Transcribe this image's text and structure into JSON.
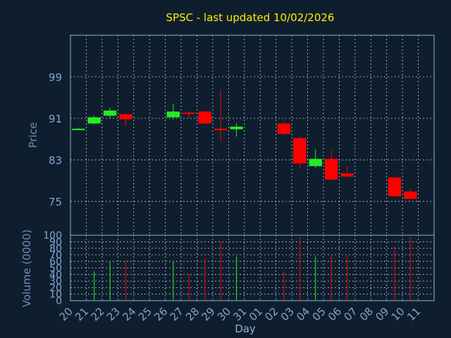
{
  "chart_data": {
    "type": "candlestick",
    "title": "SPSC - last updated 10/02/2026",
    "xlabel": "Day",
    "price_panel": {
      "ylabel": "Price",
      "yticks": [
        75,
        83,
        91,
        99
      ],
      "ylim": [
        68.5,
        107
      ]
    },
    "volume_panel": {
      "ylabel": "Volume (0000)",
      "yticks": [
        0,
        10,
        20,
        30,
        40,
        50,
        60,
        70,
        80,
        90,
        100
      ],
      "ylim": [
        0,
        100
      ]
    },
    "days": [
      "20",
      "21",
      "22",
      "23",
      "24",
      "25",
      "26",
      "27",
      "28",
      "29",
      "30",
      "31",
      "01",
      "02",
      "03",
      "04",
      "05",
      "06",
      "07",
      "08",
      "09",
      "10",
      "11"
    ],
    "candles": [
      {
        "day": "20",
        "open": 89.0,
        "close": 89.0,
        "high": 89.2,
        "low": 88.8,
        "volume": 0
      },
      {
        "day": "21",
        "open": 90.0,
        "close": 91.2,
        "high": 91.5,
        "low": 89.8,
        "volume": 45
      },
      {
        "day": "22",
        "open": 91.5,
        "close": 92.5,
        "high": 93.0,
        "low": 91.0,
        "volume": 60
      },
      {
        "day": "23",
        "open": 91.8,
        "close": 90.8,
        "high": 92.0,
        "low": 89.5,
        "volume": 63
      },
      {
        "day": "26",
        "open": 91.2,
        "close": 92.3,
        "high": 93.8,
        "low": 90.8,
        "volume": 60
      },
      {
        "day": "27",
        "open": 92.1,
        "close": 92.0,
        "high": 92.4,
        "low": 91.0,
        "volume": 40
      },
      {
        "day": "28",
        "open": 92.3,
        "close": 90.0,
        "high": 92.5,
        "low": 89.8,
        "volume": 65
      },
      {
        "day": "29",
        "open": 89.0,
        "close": 88.9,
        "high": 96.5,
        "low": 86.5,
        "volume": 90
      },
      {
        "day": "30",
        "open": 88.9,
        "close": 89.4,
        "high": 90.0,
        "low": 87.5,
        "volume": 68
      },
      {
        "day": "02",
        "open": 90.0,
        "close": 88.0,
        "high": 90.4,
        "low": 87.8,
        "volume": 45
      },
      {
        "day": "03",
        "open": 87.2,
        "close": 82.3,
        "high": 87.5,
        "low": 81.3,
        "volume": 97
      },
      {
        "day": "04",
        "open": 81.8,
        "close": 83.2,
        "high": 85.0,
        "low": 81.4,
        "volume": 68
      },
      {
        "day": "05",
        "open": 83.2,
        "close": 79.2,
        "high": 84.8,
        "low": 79.0,
        "volume": 70
      },
      {
        "day": "06",
        "open": 80.4,
        "close": 79.8,
        "high": 81.8,
        "low": 79.6,
        "volume": 68
      },
      {
        "day": "09",
        "open": 79.6,
        "close": 76.0,
        "high": 80.0,
        "low": 75.8,
        "volume": 83
      },
      {
        "day": "10",
        "open": 76.9,
        "close": 75.5,
        "high": 77.3,
        "low": 75.2,
        "volume": 97
      }
    ],
    "colors": {
      "background": "#0f1e2e",
      "up": "#22ee22",
      "down": "#ff0000",
      "frame": "#8fb0d0",
      "grid": "#b8c8d8",
      "title": "#ffee00",
      "tick_text": "#7fa6d0",
      "axis_title": "#6a8fb8"
    },
    "grid": true
  }
}
